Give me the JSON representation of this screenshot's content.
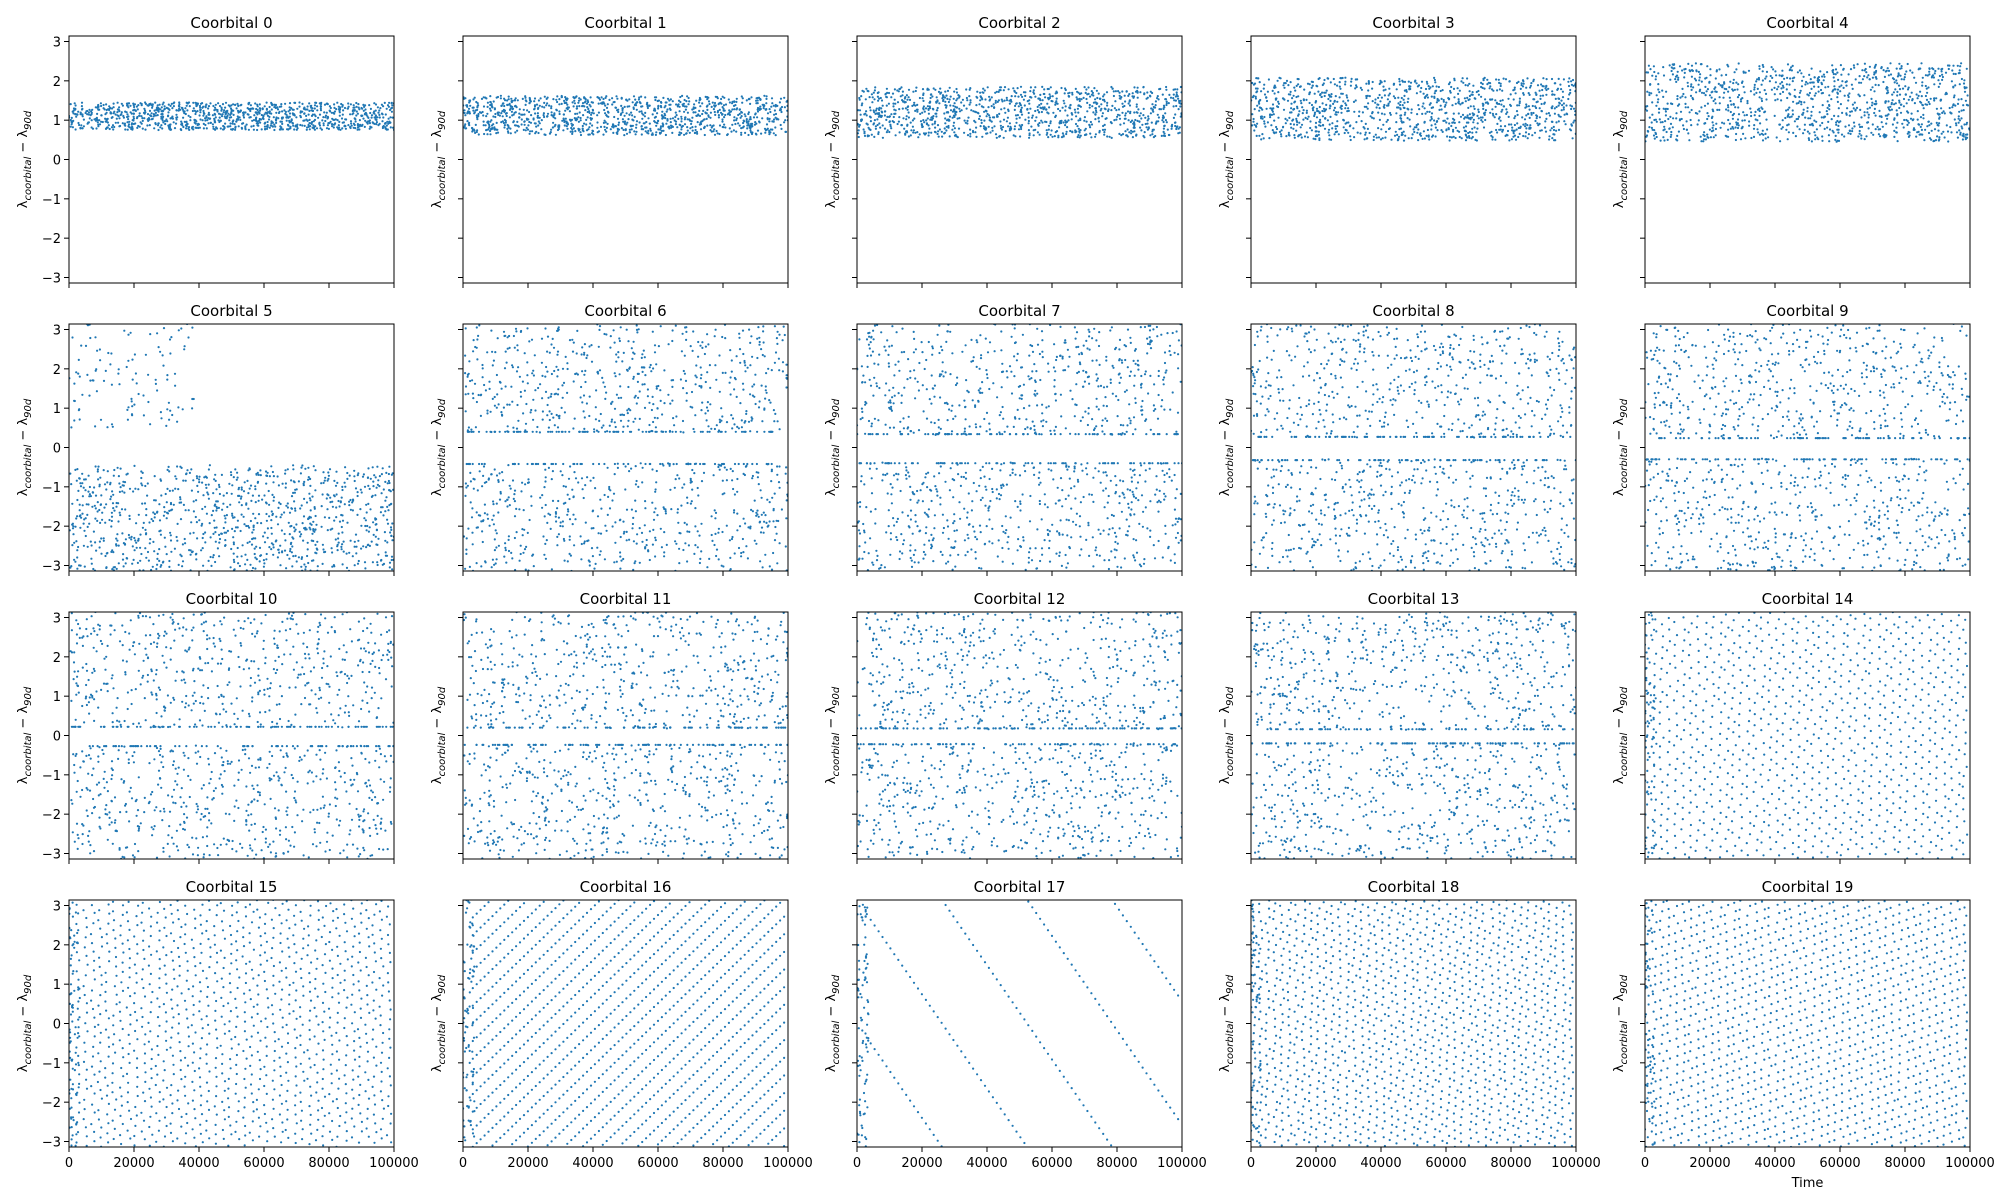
{
  "figure": {
    "background": "#ffffff",
    "point_color": "#1f77b4",
    "rows": 4,
    "cols": 5,
    "sharex": true,
    "sharey": true,
    "x_label": "Time",
    "y_label": {
      "base": "λ",
      "sub1": "coorbital",
      "mid": " − λ",
      "sub2": "90d"
    }
  },
  "chart_data": {
    "type": "scatter",
    "xlim": [
      0,
      100000
    ],
    "ylim": [
      -3.14,
      3.14
    ],
    "xticks": [
      "0",
      "20000",
      "40000",
      "60000",
      "80000",
      "100000"
    ],
    "xtick_values": [
      0,
      20000,
      40000,
      60000,
      80000,
      100000
    ],
    "yticks": [
      "3",
      "2",
      "1",
      "0",
      "−1",
      "−2",
      "−3"
    ],
    "ytick_values": [
      3,
      2,
      1,
      0,
      -1,
      -2,
      -3
    ],
    "panels": [
      {
        "title": "Coorbital 0",
        "pattern": "band",
        "band": [
          0.75,
          1.45
        ]
      },
      {
        "title": "Coorbital 1",
        "pattern": "band",
        "band": [
          0.62,
          1.62
        ]
      },
      {
        "title": "Coorbital 2",
        "pattern": "band",
        "band": [
          0.55,
          1.85
        ]
      },
      {
        "title": "Coorbital 3",
        "pattern": "band",
        "band": [
          0.48,
          2.08
        ]
      },
      {
        "title": "Coorbital 4",
        "pattern": "band",
        "band": [
          0.45,
          2.45
        ]
      },
      {
        "title": "Coorbital 5",
        "pattern": "split",
        "gap": [
          -0.45,
          0.45
        ],
        "upper_until": 40000
      },
      {
        "title": "Coorbital 6",
        "pattern": "chaos",
        "gap": [
          -0.4,
          0.38
        ]
      },
      {
        "title": "Coorbital 7",
        "pattern": "chaos",
        "gap": [
          -0.38,
          0.32
        ]
      },
      {
        "title": "Coorbital 8",
        "pattern": "chaos",
        "gap": [
          -0.3,
          0.25
        ]
      },
      {
        "title": "Coorbital 9",
        "pattern": "chaos",
        "gap": [
          -0.28,
          0.22
        ]
      },
      {
        "title": "Coorbital 10",
        "pattern": "chaos",
        "gap": [
          -0.25,
          0.2
        ]
      },
      {
        "title": "Coorbital 11",
        "pattern": "chaos",
        "gap": [
          -0.22,
          0.18
        ]
      },
      {
        "title": "Coorbital 12",
        "pattern": "chaos",
        "gap": [
          -0.2,
          0.16
        ]
      },
      {
        "title": "Coorbital 13",
        "pattern": "chaos",
        "gap": [
          -0.18,
          0.14
        ]
      },
      {
        "title": "Coorbital 14",
        "pattern": "stripes",
        "slope": -6e-05,
        "lines": 22
      },
      {
        "title": "Coorbital 15",
        "pattern": "stripes",
        "slope": 5e-05,
        "lines": 26
      },
      {
        "title": "Coorbital 16",
        "pattern": "lines",
        "slope": 0.00045,
        "lines": 14
      },
      {
        "title": "Coorbital 17",
        "pattern": "lines",
        "slope": -0.00012,
        "lines": 2
      },
      {
        "title": "Coorbital 18",
        "pattern": "stripes",
        "slope": -4e-05,
        "lines": 30
      },
      {
        "title": "Coorbital 19",
        "pattern": "stripes",
        "slope": 3e-05,
        "lines": 28
      }
    ]
  }
}
